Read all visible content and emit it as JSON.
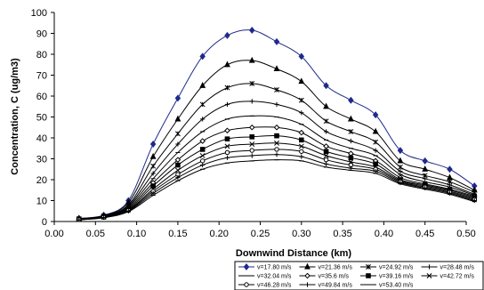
{
  "chart_data": {
    "type": "line",
    "xlabel": "Downwind Distance (km)",
    "ylabel": "Concentration, C (ug/m3)",
    "xlim": [
      0,
      0.5
    ],
    "ylim": [
      0,
      100
    ],
    "xticks": [
      "0.00",
      "0.05",
      "0.10",
      "0.15",
      "0.20",
      "0.25",
      "0.30",
      "0.35",
      "0.40",
      "0.45",
      "0.50"
    ],
    "yticks": [
      "0",
      "10",
      "20",
      "30",
      "40",
      "50",
      "60",
      "70",
      "80",
      "90",
      "100"
    ],
    "grid": false,
    "legend_position": "bottom-right",
    "x": [
      0.03,
      0.06,
      0.09,
      0.12,
      0.15,
      0.18,
      0.21,
      0.24,
      0.27,
      0.3,
      0.33,
      0.36,
      0.39,
      0.42,
      0.45,
      0.48,
      0.51
    ],
    "series": [
      {
        "name": "v=17.80 m/s",
        "marker": "diamond",
        "values": [
          1.5,
          3,
          10,
          37,
          59,
          79,
          89,
          91.5,
          86,
          79,
          65,
          58,
          51,
          34,
          29,
          25,
          17
        ]
      },
      {
        "name": "v=21.36 m/s",
        "marker": "triangle",
        "values": [
          1.4,
          2.8,
          9,
          31,
          49,
          65,
          75,
          77,
          73,
          67,
          55,
          49,
          43,
          29,
          25,
          21,
          15
        ]
      },
      {
        "name": "v=24.92 m/s",
        "marker": "asterisk",
        "values": [
          1.3,
          2.6,
          8,
          26.5,
          42,
          56,
          64,
          66,
          63,
          58,
          48,
          43,
          38,
          26,
          22,
          19,
          14
        ]
      },
      {
        "name": "v=28.48 m/s",
        "marker": "plus",
        "values": [
          1.2,
          2.5,
          7.5,
          23,
          37,
          49,
          56,
          57.5,
          56,
          52,
          43,
          38.5,
          34,
          24,
          20.5,
          17.5,
          13
        ]
      },
      {
        "name": "v=32.04 m/s",
        "marker": "dash",
        "values": [
          1.1,
          2.4,
          7,
          20.5,
          33,
          43,
          49,
          50.5,
          50,
          46.5,
          39,
          35,
          31.5,
          22.5,
          19,
          16.5,
          12.5
        ]
      },
      {
        "name": "v=35.6 m/s",
        "marker": "circle-diamond",
        "values": [
          1,
          2.3,
          6.5,
          18.5,
          29.5,
          38.5,
          43.5,
          45,
          45,
          42.5,
          36,
          32.5,
          29,
          21,
          18,
          15.5,
          12
        ]
      },
      {
        "name": "v=39.16 m/s",
        "marker": "square",
        "values": [
          1,
          2.2,
          6,
          17,
          27,
          34.5,
          39.5,
          40.5,
          41,
          39,
          33.5,
          30.5,
          27.5,
          20,
          17.5,
          15,
          11.5
        ]
      },
      {
        "name": "v=42.72 m/s",
        "marker": "x",
        "values": [
          0.9,
          2.1,
          5.6,
          15.5,
          24.5,
          31.5,
          36,
          37,
          37.5,
          36,
          31.5,
          28.5,
          26,
          19.5,
          17,
          14.5,
          11
        ]
      },
      {
        "name": "v=46.28 m/s",
        "marker": "circle",
        "values": [
          0.9,
          2,
          5.3,
          14.5,
          22.5,
          29,
          33,
          34,
          34.5,
          33.5,
          29.5,
          27,
          25,
          19,
          16.5,
          14,
          10.5
        ]
      },
      {
        "name": "v=49.84 m/s",
        "marker": "plus",
        "values": [
          0.8,
          1.9,
          5,
          13.5,
          21,
          27,
          30.5,
          31.5,
          32,
          31,
          27.5,
          25.5,
          24,
          18.5,
          16,
          13.5,
          10
        ]
      },
      {
        "name": "v=53.40 m/s",
        "marker": "dash",
        "values": [
          0.8,
          1.8,
          4.7,
          12.5,
          19.5,
          25,
          28,
          29,
          29.5,
          29,
          26,
          24.5,
          23,
          18,
          15.5,
          13,
          9.5
        ]
      }
    ],
    "colors": {
      "series_line": "#000000",
      "first_series": "#1f2a8c"
    }
  }
}
